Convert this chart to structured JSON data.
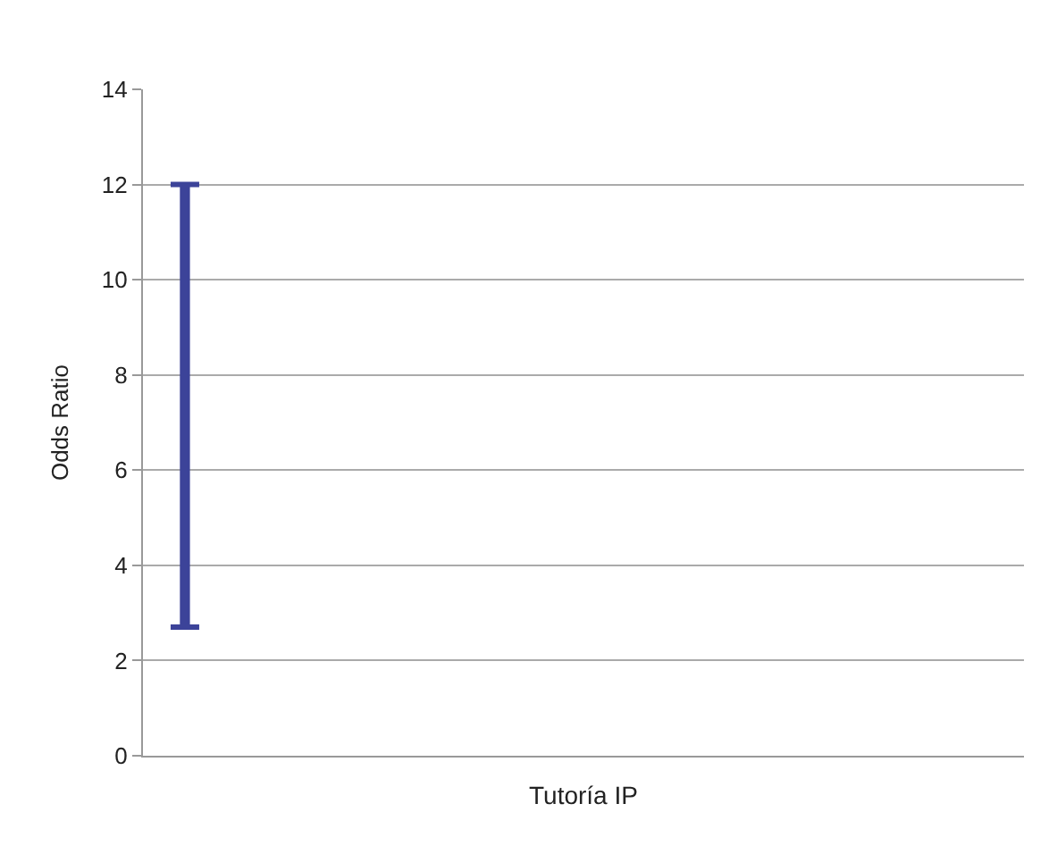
{
  "chart_data": {
    "type": "bar",
    "categories": [
      null
    ],
    "base": [
      2.7
    ],
    "values": [
      9.3
    ],
    "color": "#3c4399",
    "ylabel": "Odds Ratio",
    "ylim": [
      0,
      14
    ],
    "yticks": [
      0,
      2,
      4,
      6,
      8,
      10,
      12,
      14
    ],
    "grid": "y",
    "annotations": [
      "Tutoría IP"
    ]
  }
}
